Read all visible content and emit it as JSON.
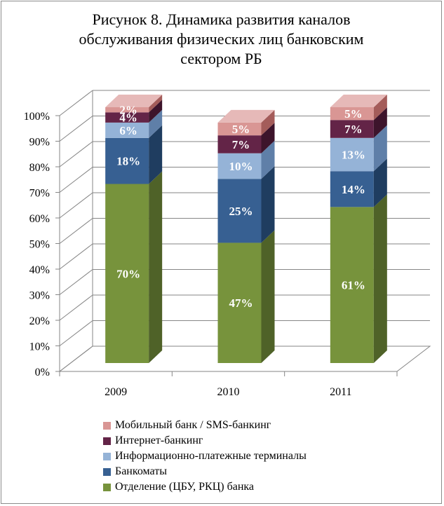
{
  "chart_data": {
    "type": "bar",
    "stacked": true,
    "three_d": true,
    "title_lines": [
      "Рисунок 8. Динамика развития каналов",
      "обслуживания физических лиц банковским",
      "сектором РБ"
    ],
    "categories": [
      "2009",
      "2010",
      "2011"
    ],
    "y_ticks": [
      "0%",
      "10%",
      "20%",
      "30%",
      "40%",
      "50%",
      "60%",
      "70%",
      "80%",
      "90%",
      "100%"
    ],
    "ylim": [
      0,
      100
    ],
    "grid": true,
    "legend_position": "bottom",
    "series": [
      {
        "name": "Отделение (ЦБУ, РКЦ) банка",
        "values": [
          70,
          47,
          61
        ],
        "labels": [
          "70%",
          "47%",
          "61%"
        ],
        "color": "#77933c",
        "dark": "#4f6228",
        "top": "#9bbb59"
      },
      {
        "name": "Банкоматы",
        "values": [
          18,
          25,
          14
        ],
        "labels": [
          "18%",
          "25%",
          "14%"
        ],
        "color": "#376092",
        "dark": "#1f3d60",
        "top": "#4f81bd"
      },
      {
        "name": "Информационно-платежные терминалы",
        "values": [
          6,
          10,
          13
        ],
        "labels": [
          "6%",
          "10%",
          "13%"
        ],
        "color": "#95b3d7",
        "dark": "#5f7fa8",
        "top": "#b9cde5"
      },
      {
        "name": "Интернет-банкинг",
        "values": [
          4,
          7,
          7
        ],
        "labels": [
          "4%",
          "7%",
          "7%"
        ],
        "color": "#632447",
        "dark": "#3d142b",
        "top": "#86305f"
      },
      {
        "name": "Мобильный банк / SMS-банкинг",
        "values": [
          2,
          5,
          5
        ],
        "labels": [
          "2%",
          "5%",
          "5%"
        ],
        "color": "#d99694",
        "dark": "#a45c5a",
        "top": "#e6b9b8"
      }
    ]
  }
}
